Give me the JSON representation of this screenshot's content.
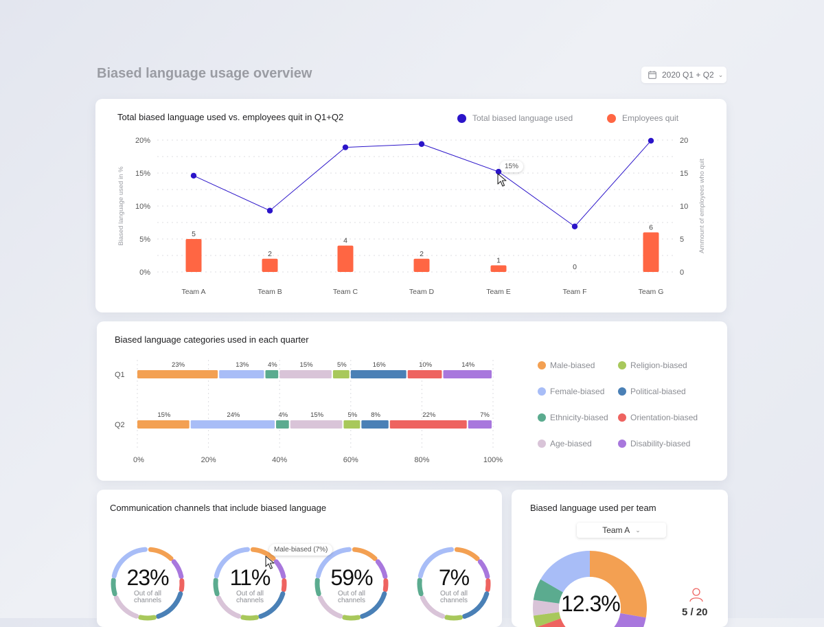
{
  "header": {
    "title": "Biased language usage overview",
    "date_range": "2020 Q1 + Q2",
    "calendar_icon": "calendar-icon"
  },
  "colors": {
    "line": "#2b14c9",
    "bar": "#ff6643",
    "male": "#f3a052",
    "female": "#a8bdf7",
    "ethnicity": "#5bab8f",
    "age": "#d9c4d8",
    "religion": "#a8c85b",
    "political": "#4a80b6",
    "orientation": "#ee6360",
    "disability": "#a877dd"
  },
  "card1": {
    "title": "Total biased language used vs. employees quit in Q1+Q2",
    "legend": [
      "Total biased language used",
      "Employees quit"
    ],
    "tooltip": "15%"
  },
  "card2": {
    "title": "Biased language categories used in each quarter",
    "legend": [
      "Male-biased",
      "Religion-biased",
      "Female-biased",
      "Political-biased",
      "Ethnicity-biased",
      "Orientation-biased",
      "Age-biased",
      "Disability-biased"
    ]
  },
  "card3": {
    "title": "Communication channels that include biased language",
    "tooltip": "Male-biased (7%)",
    "donuts": [
      {
        "value": "23%",
        "sub1": "Out of all",
        "sub2": "channels"
      },
      {
        "value": "11%",
        "sub1": "Out of all",
        "sub2": "channels"
      },
      {
        "value": "59%",
        "sub1": "Out of all",
        "sub2": "channels"
      },
      {
        "value": "7%",
        "sub1": "Out of all",
        "sub2": "channels"
      }
    ]
  },
  "card4": {
    "title": "Biased language used per team",
    "team_select": "Team A",
    "center_value": "12.3%",
    "count": "5 / 20",
    "user_icon": "user-icon"
  },
  "chart_data": [
    {
      "type": "line",
      "title": "Total biased language used vs. employees quit in Q1+Q2",
      "categories": [
        "Team A",
        "Team B",
        "Team C",
        "Team D",
        "Team E",
        "Team F",
        "Team G"
      ],
      "ylabel": "Biased language used in %",
      "ylabel_right": "Ammount of employees who quit",
      "y_ticks": [
        "0%",
        "5%",
        "10%",
        "15%",
        "20%"
      ],
      "y_right_ticks": [
        "0",
        "5",
        "10",
        "15",
        "20"
      ],
      "ylim": [
        0,
        20
      ],
      "y_right_lim": [
        0,
        20
      ],
      "series": [
        {
          "name": "Total biased language used",
          "type": "line",
          "axis": "left",
          "values": [
            14.6,
            9.3,
            18.9,
            19.4,
            15.2,
            6.9,
            19.9
          ]
        },
        {
          "name": "Employees quit",
          "type": "bar",
          "axis": "right",
          "values": [
            5,
            2,
            4,
            2,
            1,
            0,
            6
          ]
        }
      ],
      "legend_position": "top-right",
      "grid": true
    },
    {
      "type": "bar",
      "title": "Biased language categories used in each quarter",
      "orientation": "horizontal-stacked",
      "categories": [
        "Q1",
        "Q2"
      ],
      "x_ticks": [
        "0%",
        "20%",
        "40%",
        "60%",
        "80%",
        "100%"
      ],
      "xlim": [
        0,
        100
      ],
      "series": [
        {
          "name": "Male-biased",
          "values": [
            23,
            15
          ]
        },
        {
          "name": "Female-biased",
          "values": [
            13,
            24
          ]
        },
        {
          "name": "Ethnicity-biased",
          "values": [
            4,
            4
          ]
        },
        {
          "name": "Age-biased",
          "values": [
            15,
            15
          ]
        },
        {
          "name": "Religion-biased",
          "values": [
            5,
            5
          ]
        },
        {
          "name": "Political-biased",
          "values": [
            16,
            8
          ]
        },
        {
          "name": "Orientation-biased",
          "values": [
            10,
            22
          ]
        },
        {
          "name": "Disability-biased",
          "values": [
            14,
            7
          ]
        }
      ],
      "legend_position": "right",
      "grid": true
    }
  ]
}
